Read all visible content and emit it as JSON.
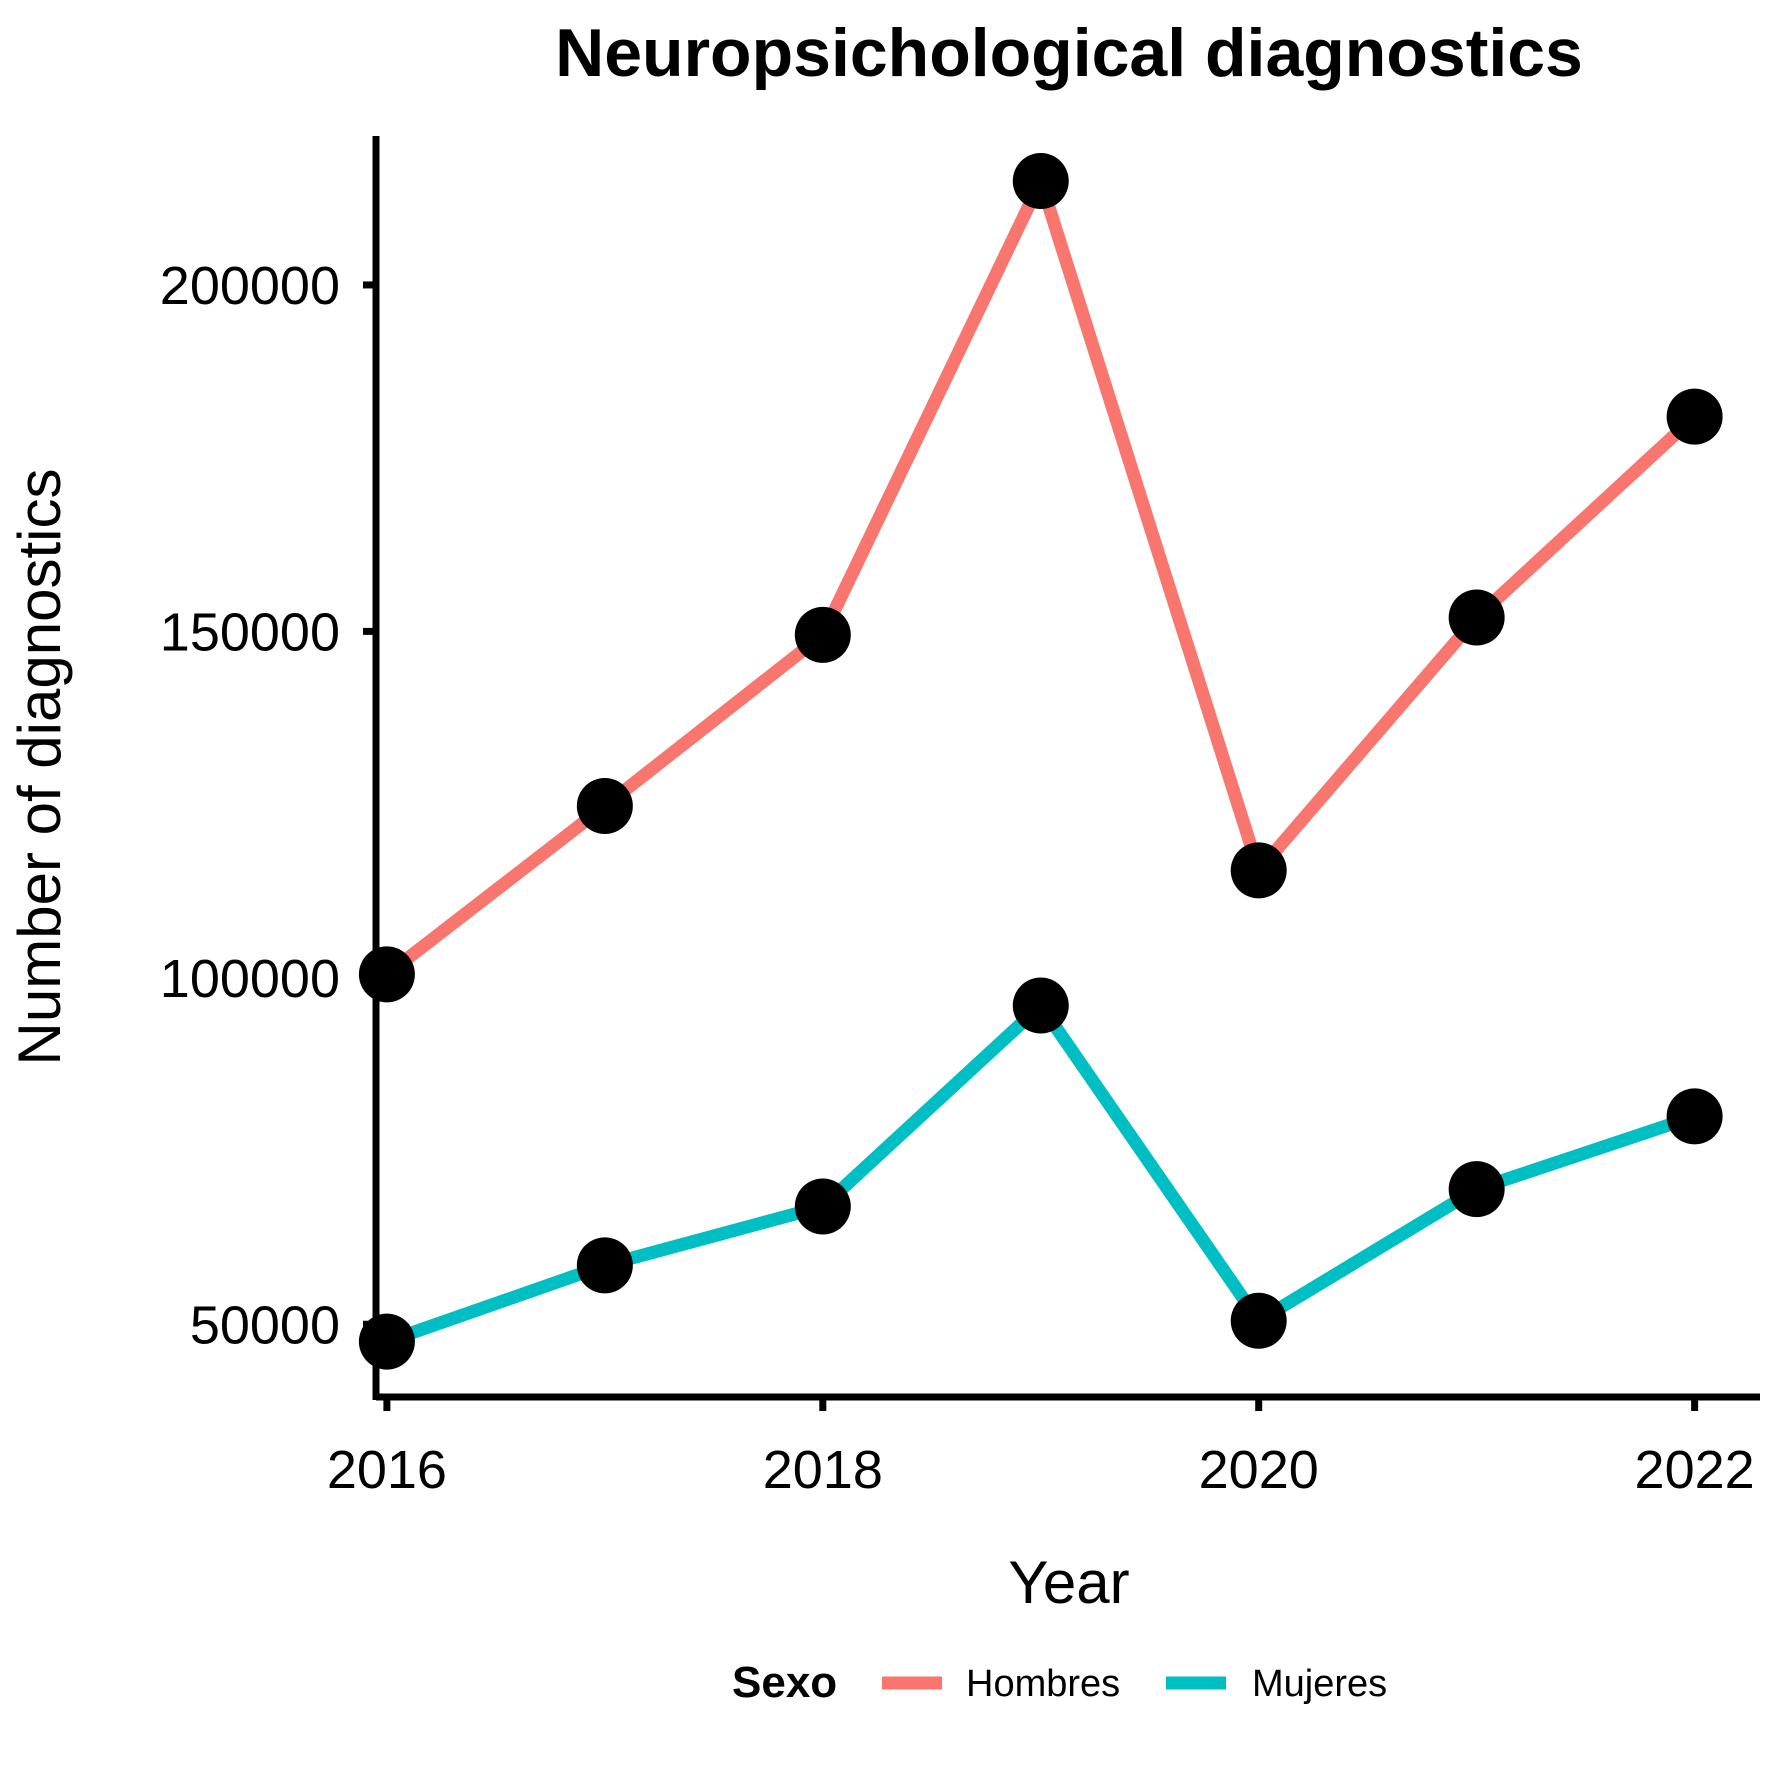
{
  "chart_data": {
    "type": "line",
    "title": "Neuropsichological diagnostics",
    "xlabel": "Year",
    "ylabel": "Number of diagnostics",
    "x": [
      2016,
      2017,
      2018,
      2019,
      2020,
      2021,
      2022
    ],
    "xticks": [
      "2016",
      "2018",
      "2020",
      "2022"
    ],
    "yticks": [
      "50000",
      "100000",
      "150000",
      "200000"
    ],
    "xlim": [
      2015.95,
      2022.3
    ],
    "ylim": [
      39500,
      221500
    ],
    "grid": false,
    "legend": {
      "title": "Sexo",
      "position": "bottom"
    },
    "series": [
      {
        "name": "Hombres",
        "color": "#F8766D",
        "values": [
          100500,
          124800,
          149500,
          215000,
          115500,
          152000,
          181000
        ]
      },
      {
        "name": "Mujeres",
        "color": "#00BFC4",
        "values": [
          47500,
          58500,
          67000,
          96000,
          50500,
          69500,
          80000
        ]
      }
    ],
    "marker_color": "#000000"
  }
}
